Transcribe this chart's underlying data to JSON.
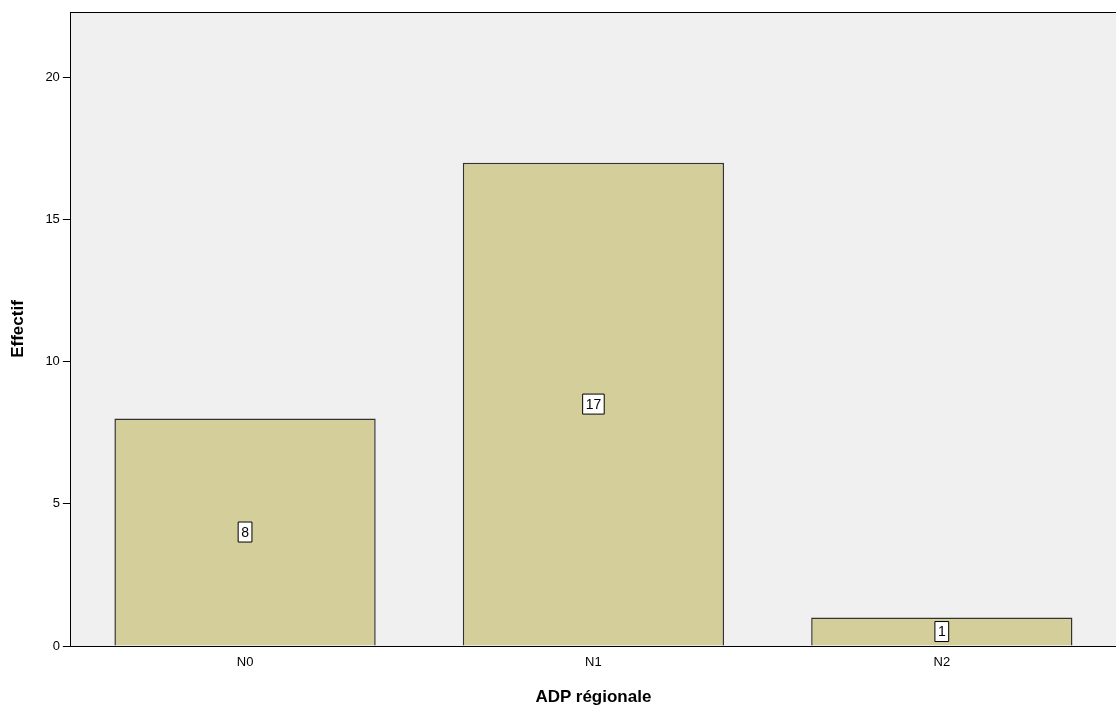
{
  "chart_data": {
    "type": "bar",
    "xlabel": "ADP régionale",
    "ylabel": "Effectif",
    "categories": [
      "N0",
      "N1",
      "N2"
    ],
    "values": [
      8,
      17,
      1
    ],
    "color": "#d3ce9a",
    "ylim": [
      0,
      22.3
    ],
    "yticks": [
      0,
      5,
      10,
      15,
      20
    ],
    "grid": false,
    "legend": false,
    "data_labels": true
  }
}
